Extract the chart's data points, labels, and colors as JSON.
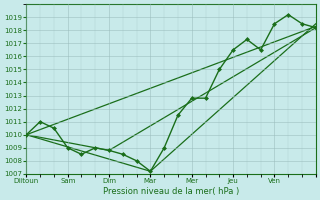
{
  "xlabel": "Pression niveau de la mer( hPa )",
  "ylim": [
    1007,
    1020
  ],
  "yticks": [
    1007,
    1008,
    1009,
    1010,
    1011,
    1012,
    1013,
    1014,
    1015,
    1016,
    1017,
    1018,
    1019
  ],
  "xtick_positions": [
    0,
    3,
    6,
    9,
    12,
    15,
    18,
    21
  ],
  "xtick_labels": [
    "Diitoun",
    "Sam",
    "Dim",
    "Mar",
    "Mer",
    "Jeu",
    "Ven",
    ""
  ],
  "bg_color": "#c8eaea",
  "line_color": "#1a6e1a",
  "grid_color": "#99bbbb",
  "series1_x": [
    0,
    1,
    2,
    3,
    4,
    5,
    6,
    7,
    8,
    9,
    10,
    11,
    12,
    13,
    14,
    15,
    16,
    17,
    18,
    19,
    20,
    21
  ],
  "series1_y": [
    1010,
    1011,
    1010.5,
    1009,
    1008.5,
    1009,
    1008.8,
    1008.5,
    1008,
    1007.2,
    1009,
    1011.5,
    1012.8,
    1012.8,
    1015,
    1016.5,
    1017.3,
    1016.5,
    1018.5,
    1019.2,
    1018.5,
    1018.2
  ],
  "series2_x": [
    0,
    21
  ],
  "series2_y": [
    1010,
    1018.3
  ],
  "series3_x": [
    0,
    9,
    21
  ],
  "series3_y": [
    1010,
    1007.2,
    1018.5
  ],
  "series4_x": [
    0,
    6,
    21
  ],
  "series4_y": [
    1010,
    1008.8,
    1018.2
  ],
  "xlim": [
    0,
    21
  ]
}
